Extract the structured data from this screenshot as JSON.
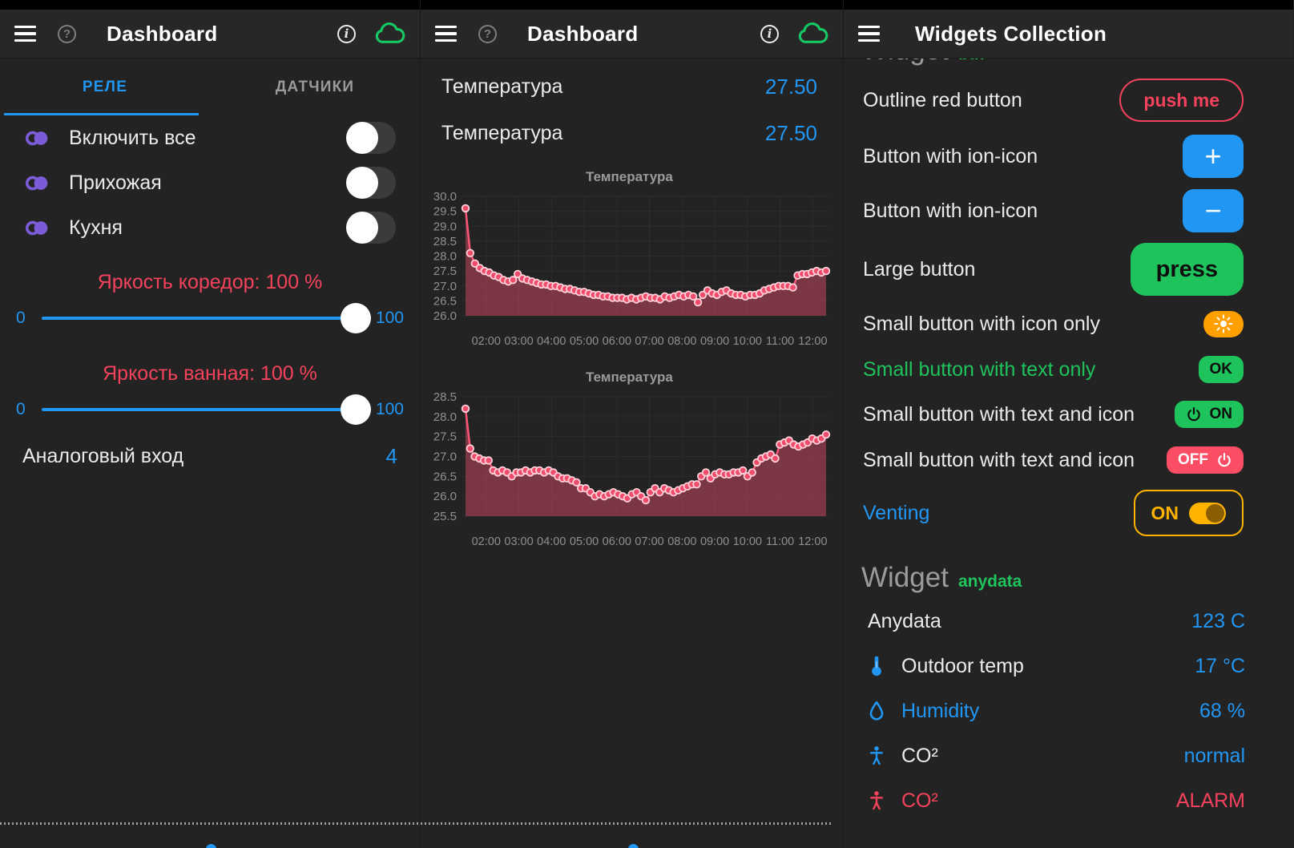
{
  "colors": {
    "accent_blue": "#2196F3",
    "red": "#F4425C",
    "green": "#1FC35C",
    "amber": "#FFB300",
    "purple": "#7C5BD8",
    "off_red_bg": "#FB4D63",
    "white_text": "#EBEBEB",
    "gray_text": "#9B9B9B",
    "cloud_green": "#17C964"
  },
  "left_dashboard": {
    "title": "Dashboard",
    "tabs": {
      "relay": "РЕЛЕ",
      "sensors": "ДАТЧИКИ"
    },
    "switches": [
      {
        "label": "Включить все",
        "state": "off"
      },
      {
        "label": "Прихожая",
        "state": "off"
      },
      {
        "label": "Кухня",
        "state": "off"
      }
    ],
    "sliders": [
      {
        "label": "Яркость коредор: 100 %",
        "min": "0",
        "max": "100",
        "value": 100
      },
      {
        "label": "Яркость ванная: 100 %",
        "min": "0",
        "max": "100",
        "value": 100
      }
    ],
    "analog": {
      "label": "Аналоговый вход",
      "value": "4"
    }
  },
  "middle_dashboard": {
    "title": "Dashboard",
    "values": [
      {
        "label": "Температура",
        "value": "27.50"
      },
      {
        "label": "Температура",
        "value": "27.50"
      }
    ]
  },
  "widgets_panel": {
    "title": "Widgets Collection",
    "clipped_heading": {
      "title": "Widget",
      "tag": "btn",
      "tag_color": "#1FC35C"
    },
    "rows": [
      {
        "label": "Outline red button",
        "button": "push me",
        "label_color": "#EBEBEB"
      },
      {
        "label": "Button with ion-icon",
        "icon": "add",
        "label_color": "#EBEBEB"
      },
      {
        "label": "Button with ion-icon",
        "icon": "remove",
        "label_color": "#EBEBEB"
      },
      {
        "label": "Large button",
        "button": "press",
        "label_color": "#EBEBEB"
      },
      {
        "label": "Small button with icon only",
        "icon": "sunny",
        "label_color": "#EBEBEB"
      },
      {
        "label": "Small button with text only",
        "button": "OK",
        "label_color": "#1FC35C"
      },
      {
        "label": "Small button with text and icon",
        "button": "ON",
        "icon": "power",
        "label_color": "#EBEBEB"
      },
      {
        "label": "Small button with text and icon",
        "button": "OFF",
        "icon": "power",
        "label_color": "#EBEBEB"
      },
      {
        "label": "Venting",
        "button": "ON",
        "label_color": "#2196F3"
      }
    ],
    "section_heading": {
      "title": "Widget",
      "tag": "anydata",
      "tag_color": "#1FC35C"
    },
    "data_rows": [
      {
        "icon": "",
        "label": "Anydata",
        "value": "123 C",
        "label_color": "#EBEBEB",
        "value_color": "#2196F3",
        "icon_color": ""
      },
      {
        "icon": "thermometer",
        "label": "Outdoor temp",
        "value": "17 °C",
        "label_color": "#EBEBEB",
        "value_color": "#2196F3",
        "icon_color": "#2196F3"
      },
      {
        "icon": "water",
        "label": "Humidity",
        "value": "68 %",
        "label_color": "#2196F3",
        "value_color": "#2196F3",
        "icon_color": "#2196F3"
      },
      {
        "icon": "body",
        "label": "CO²",
        "value": "normal",
        "label_color": "#EBEBEB",
        "value_color": "#2196F3",
        "icon_color": "#2196F3"
      },
      {
        "icon": "body",
        "label": "CO²",
        "value": "ALARM",
        "label_color": "#F4425C",
        "value_color": "#F4425C",
        "icon_color": "#F4425C"
      }
    ]
  },
  "chart_data": [
    {
      "type": "area",
      "title": "Температура",
      "xlabel": "",
      "ylabel": "",
      "x_labels": [
        "02:00",
        "03:00",
        "04:00",
        "05:00",
        "06:00",
        "07:00",
        "08:00",
        "09:00",
        "10:00",
        "11:00",
        "12:00"
      ],
      "yticks": [
        "30.0",
        "29.5",
        "29.0",
        "28.5",
        "28.0",
        "27.5",
        "27.0",
        "26.5",
        "26.0"
      ],
      "ylim": [
        26.0,
        30.0
      ],
      "grid": true,
      "line_color": "#FA5678",
      "point_color": "#EF4B6B",
      "point_stroke": "#FFD2DA",
      "fill_color": "rgba(244,81,111,0.42)",
      "values": [
        29.6,
        28.1,
        27.75,
        27.6,
        27.5,
        27.45,
        27.35,
        27.3,
        27.2,
        27.15,
        27.2,
        27.4,
        27.25,
        27.2,
        27.15,
        27.1,
        27.05,
        27.05,
        27.0,
        27.0,
        26.95,
        26.9,
        26.9,
        26.85,
        26.8,
        26.8,
        26.75,
        26.7,
        26.7,
        26.65,
        26.65,
        26.6,
        26.6,
        26.6,
        26.55,
        26.6,
        26.55,
        26.6,
        26.65,
        26.6,
        26.6,
        26.55,
        26.65,
        26.6,
        26.65,
        26.7,
        26.65,
        26.7,
        26.65,
        26.45,
        26.7,
        26.85,
        26.75,
        26.7,
        26.8,
        26.85,
        26.75,
        26.7,
        26.7,
        26.65,
        26.7,
        26.7,
        26.75,
        26.85,
        26.9,
        26.95,
        27.0,
        27.0,
        27.0,
        26.95,
        27.35,
        27.4,
        27.4,
        27.45,
        27.5,
        27.45,
        27.5
      ]
    },
    {
      "type": "area",
      "title": "Температура",
      "xlabel": "",
      "ylabel": "",
      "x_labels": [
        "02:00",
        "03:00",
        "04:00",
        "05:00",
        "06:00",
        "07:00",
        "08:00",
        "09:00",
        "10:00",
        "11:00",
        "12:00"
      ],
      "yticks": [
        "28.5",
        "28.0",
        "27.5",
        "27.0",
        "26.5",
        "26.0",
        "25.5"
      ],
      "ylim": [
        25.5,
        28.5
      ],
      "grid": true,
      "line_color": "#FA5678",
      "point_color": "#EF4B6B",
      "point_stroke": "#FFD2DA",
      "fill_color": "rgba(244,81,111,0.42)",
      "values": [
        28.2,
        27.2,
        27.0,
        26.95,
        26.9,
        26.9,
        26.65,
        26.6,
        26.65,
        26.6,
        26.5,
        26.6,
        26.6,
        26.65,
        26.6,
        26.65,
        26.65,
        26.6,
        26.65,
        26.6,
        26.5,
        26.45,
        26.45,
        26.4,
        26.35,
        26.2,
        26.2,
        26.1,
        26.0,
        26.05,
        26.0,
        26.05,
        26.1,
        26.05,
        26.0,
        25.95,
        26.05,
        26.1,
        26.0,
        25.9,
        26.1,
        26.2,
        26.1,
        26.2,
        26.15,
        26.1,
        26.15,
        26.2,
        26.25,
        26.3,
        26.3,
        26.5,
        26.6,
        26.45,
        26.55,
        26.6,
        26.55,
        26.55,
        26.6,
        26.6,
        26.65,
        26.5,
        26.6,
        26.85,
        26.95,
        27.0,
        27.05,
        26.95,
        27.3,
        27.35,
        27.4,
        27.3,
        27.25,
        27.3,
        27.35,
        27.45,
        27.4,
        27.45,
        27.55
      ]
    }
  ]
}
